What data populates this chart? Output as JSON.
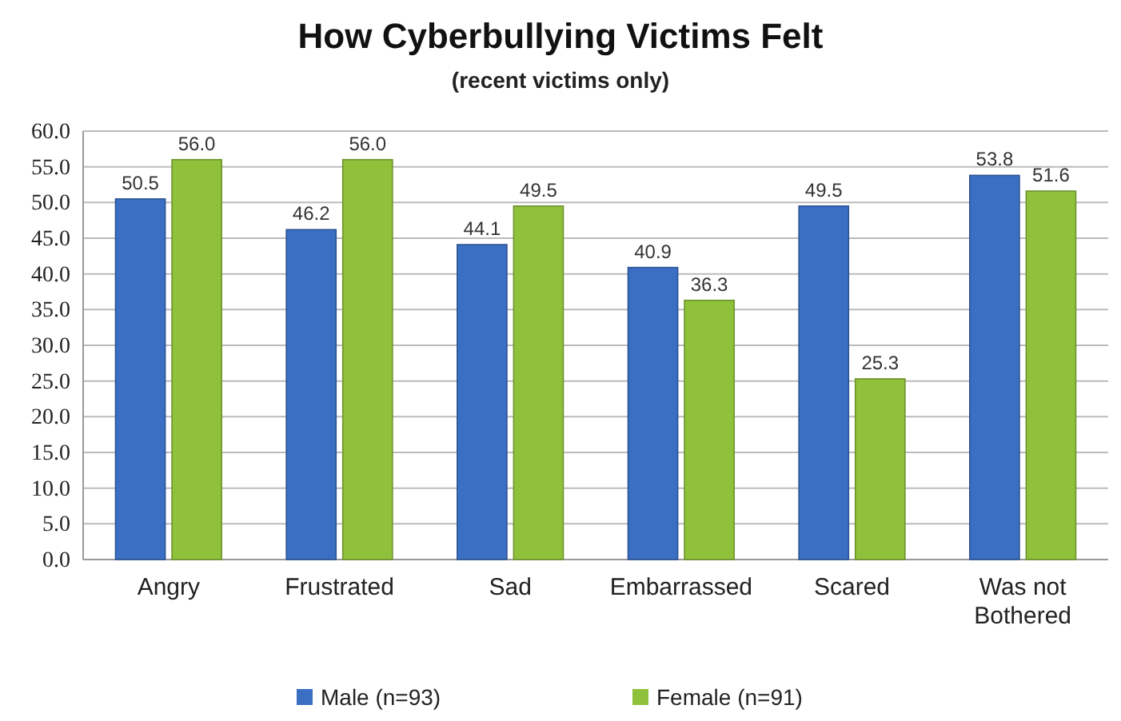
{
  "chart_data": {
    "type": "bar",
    "title": "How Cyberbullying Victims Felt",
    "subtitle": "(recent victims only)",
    "categories": [
      "Angry",
      "Frustrated",
      "Sad",
      "Embarrassed",
      "Scared",
      "Was not Bothered"
    ],
    "series": [
      {
        "name": "Male (n=93)",
        "color": "#3a6fc4",
        "values": [
          50.5,
          46.2,
          44.1,
          40.9,
          49.5,
          53.8
        ],
        "value_labels": [
          "50.5",
          "46.2",
          "44.1",
          "40.9",
          "49.5",
          "53.8"
        ]
      },
      {
        "name": "Female (n=91)",
        "color": "#8fc23a",
        "values": [
          56.0,
          56.0,
          49.5,
          36.3,
          25.3,
          51.6
        ],
        "value_labels": [
          "56.0",
          "56.0",
          "49.5",
          "36.3",
          "25.3",
          "51.6"
        ]
      }
    ],
    "ylim": [
      0,
      60
    ],
    "yticks": [
      {
        "value": 0,
        "label": "0.0"
      },
      {
        "value": 5,
        "label": "5.0"
      },
      {
        "value": 10,
        "label": "10.0"
      },
      {
        "value": 15,
        "label": "15.0"
      },
      {
        "value": 20,
        "label": "20.0"
      },
      {
        "value": 25,
        "label": "25.0"
      },
      {
        "value": 30,
        "label": "30.0"
      },
      {
        "value": 35,
        "label": "35.0"
      },
      {
        "value": 40,
        "label": "40.0"
      },
      {
        "value": 45,
        "label": "45.0"
      },
      {
        "value": 50,
        "label": "50.0"
      },
      {
        "value": 55,
        "label": "55.0"
      },
      {
        "value": 60,
        "label": "60.0"
      }
    ],
    "grid": "y",
    "legend": "bottom"
  }
}
